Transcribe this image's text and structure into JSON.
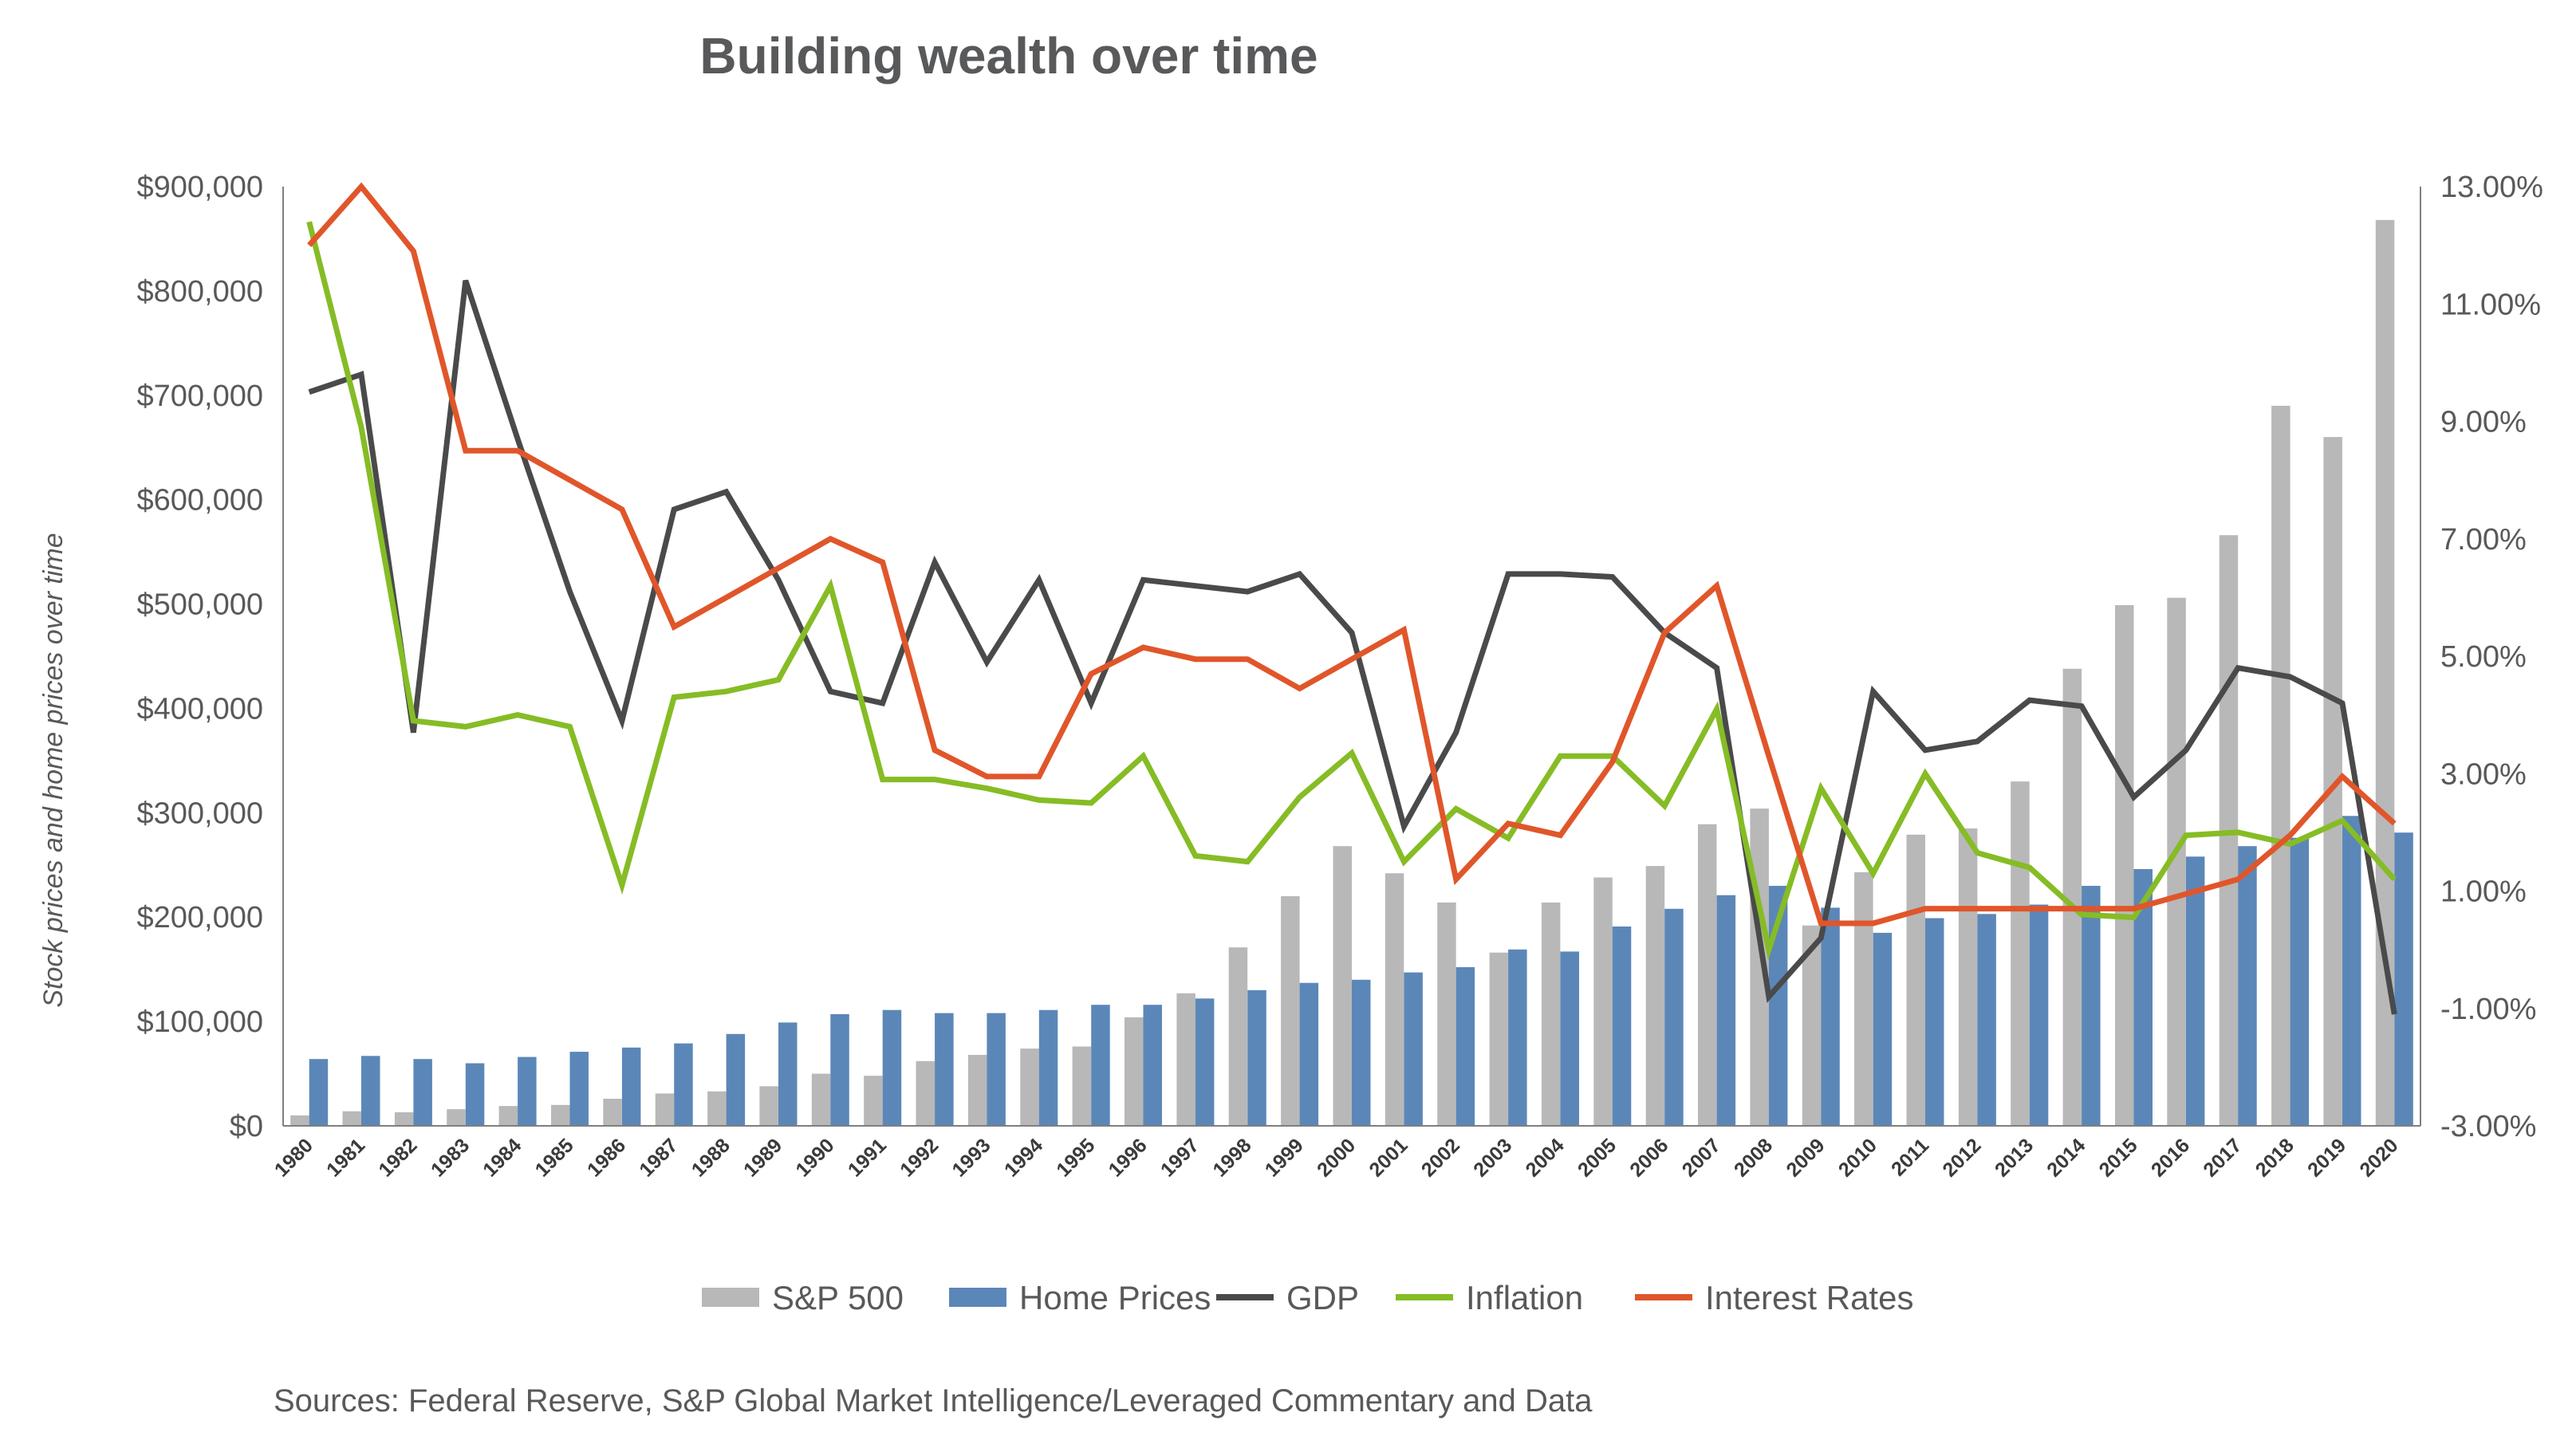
{
  "chart_data": {
    "type": "bar",
    "title": "Building wealth over time",
    "source": "Sources: Federal Reserve, S&P Global Market Intelligence/Leveraged Commentary and Data",
    "ylabel": "Stock prices and home prices over time",
    "ylim": [
      0,
      900000
    ],
    "y2lim": [
      -3,
      13
    ],
    "y_ticks": [
      "$0",
      "$100,000",
      "$200,000",
      "$300,000",
      "$400,000",
      "$500,000",
      "$600,000",
      "$700,000",
      "$800,000",
      "$900,000"
    ],
    "y_tick_values": [
      0,
      100000,
      200000,
      300000,
      400000,
      500000,
      600000,
      700000,
      800000,
      900000
    ],
    "y2_ticks": [
      "-3.00%",
      "-1.00%",
      "1.00%",
      "3.00%",
      "5.00%",
      "7.00%",
      "9.00%",
      "11.00%",
      "13.00%"
    ],
    "y2_tick_values": [
      -3,
      -1,
      1,
      3,
      5,
      7,
      9,
      11,
      13
    ],
    "grid": false,
    "legend_position": "bottom",
    "categories": [
      "1980",
      "1981",
      "1982",
      "1983",
      "1984",
      "1985",
      "1986",
      "1987",
      "1988",
      "1989",
      "1990",
      "1991",
      "1992",
      "1993",
      "1994",
      "1995",
      "1996",
      "1997",
      "1998",
      "1999",
      "2000",
      "2001",
      "2002",
      "2003",
      "2004",
      "2005",
      "2006",
      "2007",
      "2008",
      "2009",
      "2010",
      "2011",
      "2012",
      "2013",
      "2014",
      "2015",
      "2016",
      "2017",
      "2018",
      "2019",
      "2020"
    ],
    "series": [
      {
        "name": "S&P 500",
        "kind": "bar",
        "axis": "left",
        "color": "#b8b8b8",
        "values": [
          10000,
          14000,
          13000,
          16000,
          19000,
          20000,
          26000,
          31000,
          33000,
          38000,
          50000,
          48000,
          62000,
          68000,
          74000,
          76000,
          104000,
          127000,
          171000,
          220000,
          268000,
          242000,
          214000,
          166000,
          214000,
          238000,
          249000,
          289000,
          304000,
          192000,
          243000,
          279000,
          285000,
          330000,
          438000,
          499000,
          506000,
          566000,
          690000,
          660000,
          868000
        ]
      },
      {
        "name": "Home Prices",
        "kind": "bar",
        "axis": "left",
        "color": "#5b87b8",
        "values": [
          64000,
          67000,
          64000,
          60000,
          66000,
          71000,
          75000,
          79000,
          88000,
          99000,
          107000,
          111000,
          108000,
          108000,
          111000,
          116000,
          116000,
          122000,
          130000,
          137000,
          140000,
          147000,
          152000,
          169000,
          167000,
          191000,
          208000,
          221000,
          230000,
          209000,
          185000,
          199000,
          203000,
          212000,
          230000,
          246000,
          258000,
          268000,
          276000,
          297000,
          281000
        ]
      },
      {
        "name": "GDP",
        "kind": "line",
        "axis": "right",
        "color": "#4a4a4a",
        "values": [
          9.5,
          9.8,
          3.7,
          11.4,
          8.7,
          6.1,
          3.9,
          7.5,
          7.8,
          6.3,
          4.4,
          4.2,
          6.6,
          4.9,
          6.3,
          4.2,
          6.3,
          6.2,
          6.1,
          6.4,
          5.4,
          2.1,
          3.7,
          6.4,
          6.4,
          6.35,
          5.4,
          4.8,
          -0.8,
          0.2,
          4.4,
          3.4,
          3.55,
          4.25,
          4.15,
          2.6,
          3.4,
          4.8,
          4.65,
          4.2,
          -1.1
        ]
      },
      {
        "name": "Inflation",
        "kind": "line",
        "axis": "right",
        "color": "#86bc25",
        "values": [
          12.4,
          8.9,
          3.9,
          3.8,
          4.0,
          3.8,
          1.1,
          4.3,
          4.4,
          4.6,
          6.2,
          2.9,
          2.9,
          2.75,
          2.55,
          2.5,
          3.3,
          1.6,
          1.5,
          2.6,
          3.35,
          1.5,
          2.4,
          1.9,
          3.3,
          3.3,
          2.45,
          4.1,
          0.0,
          2.75,
          1.3,
          3.0,
          1.65,
          1.4,
          0.6,
          0.55,
          1.95,
          2.0,
          1.8,
          2.2,
          1.2
        ]
      },
      {
        "name": "Interest Rates",
        "kind": "line",
        "axis": "right",
        "color": "#e0562a",
        "values": [
          12.0,
          13.0,
          11.9,
          8.5,
          8.5,
          8.0,
          7.5,
          5.5,
          6.0,
          6.5,
          7.0,
          6.6,
          3.4,
          2.95,
          2.95,
          4.7,
          5.15,
          4.95,
          4.95,
          4.45,
          4.95,
          5.45,
          1.2,
          2.15,
          1.95,
          3.2,
          5.4,
          6.2,
          3.3,
          0.45,
          0.45,
          0.7,
          0.7,
          0.7,
          0.7,
          0.7,
          0.95,
          1.2,
          1.95,
          2.95,
          2.15
        ]
      }
    ]
  }
}
